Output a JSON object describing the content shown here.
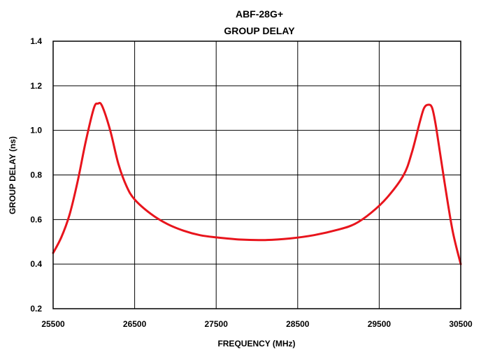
{
  "chart_data": {
    "type": "line",
    "title": "ABF-28G+",
    "subtitle": "GROUP DELAY",
    "xlabel": "FREQUENCY (MHz)",
    "ylabel": "GROUP DELAY (ns)",
    "xlim": [
      25500,
      30500
    ],
    "ylim": [
      0.2,
      1.4
    ],
    "xticks": [
      25500,
      26500,
      27500,
      28500,
      29500,
      30500
    ],
    "yticks": [
      0.2,
      0.4,
      0.6,
      0.8,
      1.0,
      1.2,
      1.4
    ],
    "xtick_labels": [
      "25500",
      "26500",
      "27500",
      "28500",
      "29500",
      "30500"
    ],
    "ytick_labels": [
      "0.2",
      "0.4",
      "0.6",
      "0.8",
      "1.0",
      "1.2",
      "1.4"
    ],
    "grid": true,
    "legend": "none",
    "series_color": "#e8141c",
    "series": [
      {
        "x": [
          25500,
          25600,
          25700,
          25800,
          25900,
          26000,
          26050,
          26100,
          26200,
          26300,
          26400,
          26500,
          26700,
          26900,
          27100,
          27300,
          27500,
          27800,
          28100,
          28400,
          28700,
          29000,
          29200,
          29400,
          29600,
          29800,
          29900,
          30000,
          30050,
          30100,
          30150,
          30200,
          30300,
          30400,
          30500
        ],
        "y": [
          0.45,
          0.52,
          0.62,
          0.77,
          0.95,
          1.1,
          1.12,
          1.11,
          1.0,
          0.85,
          0.75,
          0.69,
          0.625,
          0.58,
          0.55,
          0.53,
          0.52,
          0.51,
          0.508,
          0.515,
          0.53,
          0.555,
          0.58,
          0.63,
          0.7,
          0.8,
          0.9,
          1.04,
          1.1,
          1.115,
          1.1,
          1.01,
          0.77,
          0.55,
          0.4
        ]
      }
    ]
  }
}
